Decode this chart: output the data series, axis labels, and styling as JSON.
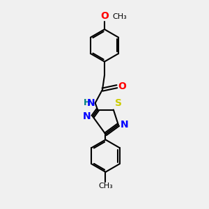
{
  "bg_color": "#f0f0f0",
  "bond_color": "#000000",
  "bond_width": 1.5,
  "font_size": 9,
  "atom_colors": {
    "O": "#ff0000",
    "N": "#0000ff",
    "S": "#cccc00",
    "H": "#008080",
    "C": "#000000"
  }
}
